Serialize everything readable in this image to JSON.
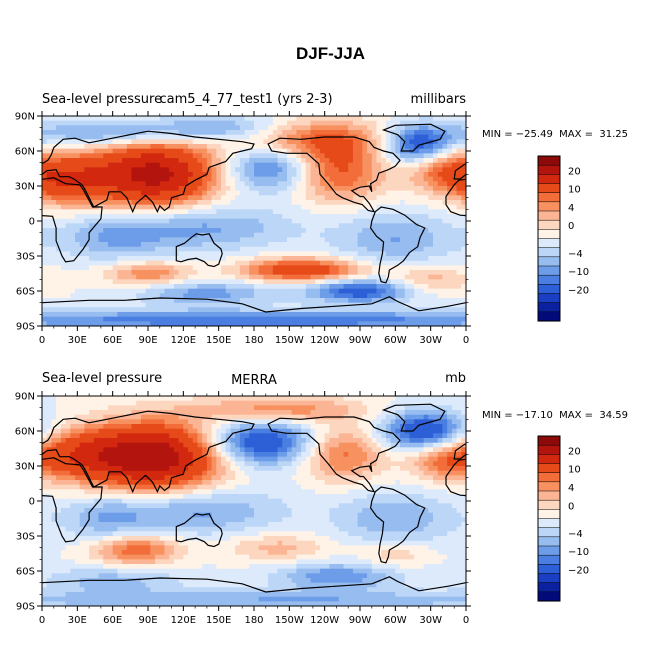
{
  "figure": {
    "title": "DJF-JJA"
  },
  "colorbar": {
    "levels": [
      -25,
      -20,
      -15,
      -10,
      -8,
      -6,
      -4,
      -2,
      0,
      2,
      4,
      6,
      8,
      10,
      15,
      20,
      25
    ],
    "tick_labels": [
      "20",
      "10",
      "4",
      "0",
      "−4",
      "−10",
      "−20"
    ],
    "colors": [
      "#8c0a0a",
      "#b4140e",
      "#d2280f",
      "#e64a19",
      "#f26d3a",
      "#f7915f",
      "#fbb594",
      "#fdd6c0",
      "#fff3e8",
      "#dceafb",
      "#bcd6f7",
      "#97bcf0",
      "#6d9de8",
      "#4a7ee0",
      "#2d5fd6",
      "#1a3fc2",
      "#0c21a0",
      "#020a7a"
    ]
  },
  "chart_data": [
    {
      "type": "heatmap",
      "left_title": "Sea-level pressure",
      "center_title": "cam5_4_77_test1 (yrs 2-3)",
      "units": "millibars",
      "stats_text": "MIN = −25.49  MAX =  31.25",
      "min": -25.49,
      "max": 31.25,
      "x_ticks": [
        "0",
        "30E",
        "60E",
        "90E",
        "120E",
        "150E",
        "180",
        "150W",
        "120W",
        "90W",
        "60W",
        "30W",
        "0"
      ],
      "y_ticks": [
        "90N",
        "60N",
        "30N",
        "0",
        "30S",
        "60S",
        "90S"
      ],
      "xlim": [
        0,
        360
      ],
      "ylim": [
        -90,
        90
      ],
      "features": [
        {
          "lon": 95,
          "lat": 40,
          "amp": 22,
          "slon": 38,
          "slat": 20
        },
        {
          "lon": 20,
          "lat": 35,
          "amp": 12,
          "slon": 25,
          "slat": 15
        },
        {
          "lon": 250,
          "lat": 42,
          "amp": 11,
          "slon": 28,
          "slat": 18
        },
        {
          "lon": 235,
          "lat": 70,
          "amp": 9,
          "slon": 45,
          "slat": 12
        },
        {
          "lon": 340,
          "lat": 45,
          "amp": 9,
          "slon": 22,
          "slat": 14
        },
        {
          "lon": 195,
          "lat": 45,
          "amp": -10,
          "slon": 30,
          "slat": 14
        },
        {
          "lon": 320,
          "lat": 65,
          "amp": -14,
          "slon": 22,
          "slat": 12
        },
        {
          "lon": 60,
          "lat": 75,
          "amp": -8,
          "slon": 50,
          "slat": 8
        },
        {
          "lon": 150,
          "lat": 80,
          "amp": -6,
          "slon": 40,
          "slat": 8
        },
        {
          "lon": 130,
          "lat": -5,
          "amp": -7,
          "slon": 55,
          "slat": 14
        },
        {
          "lon": 300,
          "lat": -15,
          "amp": -6,
          "slon": 35,
          "slat": 16
        },
        {
          "lon": 60,
          "lat": -15,
          "amp": -5,
          "slon": 30,
          "slat": 14
        },
        {
          "lon": 90,
          "lat": -45,
          "amp": 8,
          "slon": 25,
          "slat": 7
        },
        {
          "lon": 220,
          "lat": -42,
          "amp": 14,
          "slon": 35,
          "slat": 7
        },
        {
          "lon": 270,
          "lat": -60,
          "amp": -12,
          "slon": 30,
          "slat": 7
        },
        {
          "lon": 140,
          "lat": -62,
          "amp": -7,
          "slon": 40,
          "slat": 7
        },
        {
          "lon": 330,
          "lat": -50,
          "amp": 5,
          "slon": 25,
          "slat": 8
        },
        {
          "lon": 180,
          "lat": -85,
          "amp": -10,
          "slon": 200,
          "slat": 6
        }
      ]
    },
    {
      "type": "heatmap",
      "left_title": "Sea-level pressure",
      "center_title": "MERRA",
      "units": "mb",
      "stats_text": "MIN = −17.10  MAX =  34.59",
      "min": -17.1,
      "max": 34.59,
      "x_ticks": [
        "0",
        "30E",
        "60E",
        "90E",
        "120E",
        "150E",
        "180",
        "150W",
        "120W",
        "90W",
        "60W",
        "30W",
        "0"
      ],
      "y_ticks": [
        "90N",
        "60N",
        "30N",
        "0",
        "30S",
        "60S",
        "90S"
      ],
      "xlim": [
        0,
        360
      ],
      "ylim": [
        -90,
        90
      ],
      "features": [
        {
          "lon": 95,
          "lat": 38,
          "amp": 24,
          "slon": 40,
          "slat": 20
        },
        {
          "lon": 30,
          "lat": 40,
          "amp": 10,
          "slon": 30,
          "slat": 15
        },
        {
          "lon": 255,
          "lat": 40,
          "amp": 9,
          "slon": 25,
          "slat": 16
        },
        {
          "lon": 200,
          "lat": 78,
          "amp": 8,
          "slon": 50,
          "slat": 8
        },
        {
          "lon": 340,
          "lat": 35,
          "amp": 8,
          "slon": 20,
          "slat": 12
        },
        {
          "lon": 185,
          "lat": 50,
          "amp": -14,
          "slon": 32,
          "slat": 14
        },
        {
          "lon": 325,
          "lat": 60,
          "amp": -14,
          "slon": 25,
          "slat": 12
        },
        {
          "lon": 130,
          "lat": -8,
          "amp": -7,
          "slon": 50,
          "slat": 14
        },
        {
          "lon": 300,
          "lat": -15,
          "amp": -6,
          "slon": 35,
          "slat": 16
        },
        {
          "lon": 55,
          "lat": -15,
          "amp": -5,
          "slon": 25,
          "slat": 14
        },
        {
          "lon": 80,
          "lat": -42,
          "amp": 10,
          "slon": 25,
          "slat": 9
        },
        {
          "lon": 200,
          "lat": -40,
          "amp": 5,
          "slon": 30,
          "slat": 8
        },
        {
          "lon": 300,
          "lat": -45,
          "amp": 4,
          "slon": 20,
          "slat": 8
        },
        {
          "lon": 250,
          "lat": -65,
          "amp": -8,
          "slon": 35,
          "slat": 8
        },
        {
          "lon": 60,
          "lat": -68,
          "amp": -5,
          "slon": 40,
          "slat": 8
        },
        {
          "lon": 180,
          "lat": -85,
          "amp": -6,
          "slon": 200,
          "slat": 6
        }
      ]
    }
  ]
}
